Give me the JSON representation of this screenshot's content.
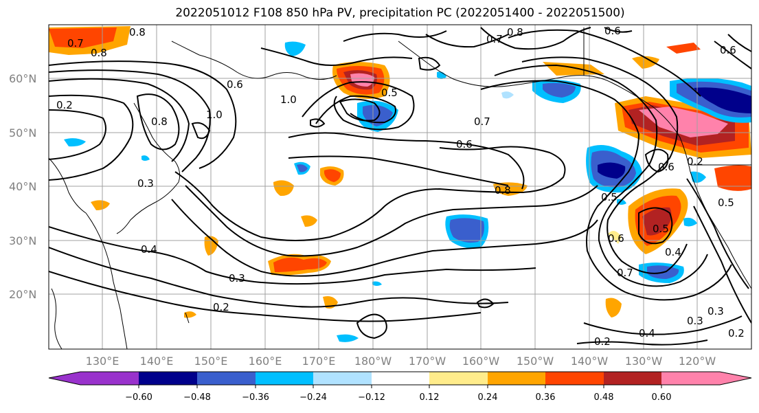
{
  "title": "2022051012 F108 850 hPa PV, precipitation PC (2022051400 - 2022051500)",
  "lat_labels": [
    "60°N",
    "50°N",
    "40°N",
    "30°N",
    "20°N"
  ],
  "lon_labels": [
    "130°E",
    "140°E",
    "150°E",
    "160°E",
    "170°E",
    "180°W",
    "170°W",
    "160°W",
    "150°W",
    "140°W",
    "130°W",
    "120°W"
  ],
  "colorbar": {
    "ticks": [
      "−0.60",
      "−0.48",
      "−0.36",
      "−0.24",
      "−0.12",
      "0.12",
      "0.24",
      "0.36",
      "0.48",
      "0.60"
    ],
    "colors": [
      "#9932cc",
      "#00008b",
      "#3a5fcd",
      "#00bfff",
      "#b0e2ff",
      "#ffffff",
      "#ffec8b",
      "#ffa500",
      "#ff4500",
      "#b22222",
      "#ff82ab"
    ]
  },
  "contour_labels": [
    "0.7",
    "0.8",
    "0.8",
    "0.6",
    "0.7",
    "0.8",
    "0.6",
    "0.2",
    "1.0",
    "0.8",
    "0.5",
    "0.3",
    "0.3",
    "0.6",
    "0.7",
    "0.8",
    "0.6",
    "0.5",
    "0.6",
    "0.4",
    "0.3",
    "0.2",
    "0.5",
    "0.5",
    "0.7",
    "0.4",
    "0.4",
    "0.3",
    "0.2",
    "0.2",
    "0.6",
    "0.2",
    "1.0"
  ]
}
